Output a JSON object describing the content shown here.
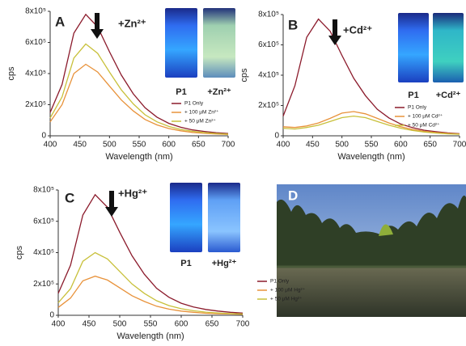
{
  "chart_data": [
    {
      "type": "line",
      "panel_label": "A",
      "annotation": "+Zn²⁺",
      "vial_labels": [
        "P1",
        "+Zn²⁺"
      ],
      "x_label": "Wavelength (nm)",
      "y_label": "cps",
      "x": [
        400,
        420,
        440,
        460,
        480,
        500,
        520,
        540,
        560,
        580,
        600,
        620,
        640,
        660,
        680,
        700
      ],
      "series": [
        {
          "name": "P1 Only",
          "color": "#8b1a2b",
          "values": [
            150000,
            330000,
            660000,
            780000,
            700000,
            540000,
            390000,
            270000,
            180000,
            120000,
            80000,
            55000,
            38000,
            28000,
            20000,
            15000
          ]
        },
        {
          "name": "+ 100 μM Zn²⁺",
          "color": "#e8923a",
          "values": [
            90000,
            200000,
            400000,
            460000,
            410000,
            320000,
            230000,
            160000,
            105000,
            70000,
            47000,
            32000,
            22000,
            16000,
            12000,
            9000
          ]
        },
        {
          "name": "+ 50 μM Zn²⁺",
          "color": "#c8c03a",
          "values": [
            115000,
            250000,
            500000,
            590000,
            530000,
            410000,
            295000,
            205000,
            135000,
            90000,
            60000,
            41000,
            29000,
            21000,
            15000,
            11000
          ]
        }
      ],
      "xlim": [
        400,
        700
      ],
      "xticks": [
        400,
        450,
        500,
        550,
        600,
        650,
        700
      ],
      "ylim": [
        0,
        800000
      ],
      "yticks": [
        0,
        {
          "value": 200000,
          "label": "2x10⁵"
        },
        {
          "value": 400000,
          "label": "4x10⁵"
        },
        {
          "value": 600000,
          "label": "6x10⁵"
        },
        {
          "value": 800000,
          "label": "8x10⁵"
        }
      ]
    },
    {
      "type": "line",
      "panel_label": "B",
      "annotation": "+Cd²⁺",
      "vial_labels": [
        "P1",
        "+Cd²⁺"
      ],
      "x_label": "Wavelength (nm)",
      "y_label": "cps",
      "x": [
        400,
        420,
        440,
        460,
        480,
        500,
        520,
        540,
        560,
        580,
        600,
        620,
        640,
        660,
        680,
        700
      ],
      "series": [
        {
          "name": "P1 Only",
          "color": "#8b1a2b",
          "values": [
            130000,
            330000,
            650000,
            770000,
            690000,
            530000,
            380000,
            265000,
            175000,
            118000,
            78000,
            54000,
            37000,
            27000,
            19000,
            14000
          ]
        },
        {
          "name": "+ 100 μM Cd²⁺",
          "color": "#e8923a",
          "values": [
            60000,
            55000,
            65000,
            85000,
            115000,
            150000,
            160000,
            145000,
            115000,
            85000,
            60000,
            42000,
            30000,
            22000,
            16000,
            12000
          ]
        },
        {
          "name": "+ 50 μM Cd²⁺",
          "color": "#c8c03a",
          "values": [
            50000,
            45000,
            55000,
            70000,
            95000,
            120000,
            130000,
            120000,
            95000,
            70000,
            50000,
            35000,
            25000,
            18000,
            13000,
            10000
          ]
        }
      ],
      "xlim": [
        400,
        700
      ],
      "xticks": [
        400,
        450,
        500,
        550,
        600,
        650,
        700
      ],
      "ylim": [
        0,
        800000
      ],
      "yticks": [
        0,
        {
          "value": 200000,
          "label": "2x10⁵"
        },
        {
          "value": 400000,
          "label": "4x10⁵"
        },
        {
          "value": 600000,
          "label": "6x10⁵"
        },
        {
          "value": 800000,
          "label": "8x10⁵"
        }
      ]
    },
    {
      "type": "line",
      "panel_label": "C",
      "annotation": "+Hg²⁺",
      "vial_labels": [
        "P1",
        "+Hg²⁺"
      ],
      "x_label": "Wavelength (nm)",
      "y_label": "cps",
      "x": [
        400,
        420,
        440,
        460,
        480,
        500,
        520,
        540,
        560,
        580,
        600,
        620,
        640,
        660,
        680,
        700
      ],
      "series": [
        {
          "name": "P1 Only",
          "color": "#8b1a2b",
          "values": [
            140000,
            320000,
            640000,
            770000,
            690000,
            530000,
            380000,
            262000,
            172000,
            115000,
            77000,
            53000,
            37000,
            27000,
            19000,
            14000
          ]
        },
        {
          "name": "+ 100 μM Hg²⁺",
          "color": "#e8923a",
          "values": [
            50000,
            110000,
            220000,
            250000,
            225000,
            175000,
            125000,
            88000,
            58000,
            39000,
            27000,
            19000,
            13000,
            10000,
            8000,
            6000
          ]
        },
        {
          "name": "+ 50 μM Hg²⁺",
          "color": "#c8c03a",
          "values": [
            80000,
            170000,
            345000,
            400000,
            360000,
            280000,
            200000,
            140000,
            93000,
            62000,
            42000,
            29000,
            20000,
            15000,
            11000,
            8000
          ]
        }
      ],
      "xlim": [
        400,
        700
      ],
      "xticks": [
        400,
        450,
        500,
        550,
        600,
        650,
        700
      ],
      "ylim": [
        0,
        800000
      ],
      "yticks": [
        0,
        {
          "value": 200000,
          "label": "2x10⁵"
        },
        {
          "value": 400000,
          "label": "4x10⁵"
        },
        {
          "value": 600000,
          "label": "6x10⁵"
        },
        {
          "value": 800000,
          "label": "8x10⁵"
        }
      ]
    }
  ],
  "photo_panel": {
    "label": "D"
  }
}
